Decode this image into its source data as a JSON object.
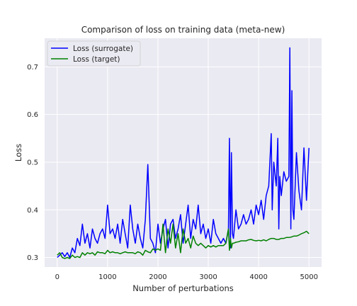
{
  "chart_data": {
    "type": "line",
    "title": "Comparison of loss on training data (meta-new)",
    "xlabel": "Number of perturbations",
    "ylabel": "Loss",
    "xlim": [
      -250,
      5250
    ],
    "ylim": [
      0.28,
      0.76
    ],
    "xticks": [
      0,
      1000,
      2000,
      3000,
      4000,
      5000
    ],
    "yticks": [
      0.3,
      0.4,
      0.5,
      0.6,
      0.7
    ],
    "grid": true,
    "legend_position": "upper-left",
    "background": "#eaeaf2",
    "series": [
      {
        "name": "Loss (surrogate)",
        "color": "#0000ff",
        "x": [
          0,
          50,
          100,
          150,
          200,
          250,
          300,
          350,
          400,
          450,
          500,
          550,
          600,
          650,
          700,
          750,
          800,
          850,
          900,
          950,
          1000,
          1050,
          1100,
          1150,
          1200,
          1250,
          1300,
          1350,
          1400,
          1450,
          1500,
          1550,
          1600,
          1650,
          1700,
          1750,
          1800,
          1850,
          1900,
          1950,
          2000,
          2050,
          2100,
          2150,
          2200,
          2250,
          2300,
          2350,
          2400,
          2450,
          2500,
          2550,
          2600,
          2650,
          2700,
          2750,
          2800,
          2850,
          2900,
          2950,
          3000,
          3050,
          3100,
          3150,
          3200,
          3250,
          3300,
          3350,
          3400,
          3420,
          3440,
          3460,
          3480,
          3500,
          3550,
          3600,
          3650,
          3700,
          3750,
          3800,
          3850,
          3900,
          3950,
          4000,
          4050,
          4100,
          4150,
          4200,
          4250,
          4270,
          4300,
          4350,
          4380,
          4400,
          4420,
          4450,
          4500,
          4550,
          4600,
          4620,
          4640,
          4660,
          4680,
          4700,
          4750,
          4800,
          4850,
          4900,
          4950,
          5000
        ],
        "y": [
          0.3,
          0.305,
          0.31,
          0.302,
          0.31,
          0.3,
          0.32,
          0.31,
          0.34,
          0.325,
          0.37,
          0.33,
          0.35,
          0.32,
          0.36,
          0.34,
          0.33,
          0.35,
          0.36,
          0.34,
          0.41,
          0.35,
          0.36,
          0.34,
          0.37,
          0.33,
          0.38,
          0.35,
          0.32,
          0.41,
          0.36,
          0.33,
          0.37,
          0.34,
          0.32,
          0.38,
          0.495,
          0.34,
          0.33,
          0.31,
          0.37,
          0.33,
          0.36,
          0.38,
          0.32,
          0.37,
          0.38,
          0.34,
          0.36,
          0.39,
          0.33,
          0.37,
          0.41,
          0.34,
          0.38,
          0.36,
          0.41,
          0.35,
          0.37,
          0.34,
          0.36,
          0.33,
          0.38,
          0.35,
          0.34,
          0.33,
          0.34,
          0.33,
          0.36,
          0.55,
          0.32,
          0.52,
          0.35,
          0.34,
          0.4,
          0.36,
          0.37,
          0.39,
          0.37,
          0.38,
          0.4,
          0.37,
          0.41,
          0.39,
          0.42,
          0.38,
          0.43,
          0.45,
          0.56,
          0.4,
          0.5,
          0.45,
          0.55,
          0.36,
          0.47,
          0.43,
          0.48,
          0.46,
          0.47,
          0.74,
          0.36,
          0.65,
          0.4,
          0.38,
          0.52,
          0.44,
          0.4,
          0.53,
          0.42,
          0.53
        ]
      },
      {
        "name": "Loss (target)",
        "color": "#008000",
        "x": [
          0,
          50,
          100,
          150,
          200,
          250,
          300,
          350,
          400,
          450,
          500,
          550,
          600,
          650,
          700,
          750,
          800,
          850,
          900,
          950,
          1000,
          1050,
          1100,
          1150,
          1200,
          1250,
          1300,
          1350,
          1400,
          1450,
          1500,
          1550,
          1600,
          1650,
          1700,
          1750,
          1800,
          1850,
          1900,
          1950,
          2000,
          2050,
          2100,
          2150,
          2200,
          2250,
          2300,
          2350,
          2400,
          2450,
          2500,
          2550,
          2600,
          2650,
          2700,
          2750,
          2800,
          2850,
          2900,
          2950,
          3000,
          3050,
          3100,
          3150,
          3200,
          3250,
          3300,
          3350,
          3400,
          3420,
          3440,
          3460,
          3480,
          3500,
          3550,
          3600,
          3650,
          3700,
          3750,
          3800,
          3850,
          3900,
          3950,
          4000,
          4050,
          4100,
          4150,
          4200,
          4250,
          4300,
          4350,
          4400,
          4450,
          4500,
          4550,
          4600,
          4650,
          4700,
          4750,
          4800,
          4850,
          4900,
          4950,
          5000
        ],
        "y": [
          0.305,
          0.31,
          0.3,
          0.298,
          0.3,
          0.298,
          0.305,
          0.3,
          0.302,
          0.3,
          0.31,
          0.305,
          0.31,
          0.308,
          0.31,
          0.305,
          0.312,
          0.31,
          0.31,
          0.308,
          0.315,
          0.31,
          0.312,
          0.31,
          0.31,
          0.308,
          0.31,
          0.312,
          0.31,
          0.31,
          0.31,
          0.308,
          0.312,
          0.31,
          0.305,
          0.315,
          0.312,
          0.31,
          0.318,
          0.315,
          0.318,
          0.315,
          0.37,
          0.31,
          0.36,
          0.33,
          0.37,
          0.32,
          0.35,
          0.31,
          0.36,
          0.33,
          0.34,
          0.32,
          0.345,
          0.33,
          0.325,
          0.33,
          0.325,
          0.32,
          0.325,
          0.322,
          0.325,
          0.322,
          0.325,
          0.325,
          0.325,
          0.33,
          0.36,
          0.315,
          0.34,
          0.32,
          0.33,
          0.33,
          0.332,
          0.333,
          0.335,
          0.335,
          0.335,
          0.337,
          0.338,
          0.336,
          0.335,
          0.336,
          0.335,
          0.337,
          0.335,
          0.338,
          0.34,
          0.34,
          0.338,
          0.338,
          0.34,
          0.34,
          0.342,
          0.342,
          0.343,
          0.345,
          0.345,
          0.347,
          0.35,
          0.352,
          0.355,
          0.35
        ]
      }
    ]
  }
}
